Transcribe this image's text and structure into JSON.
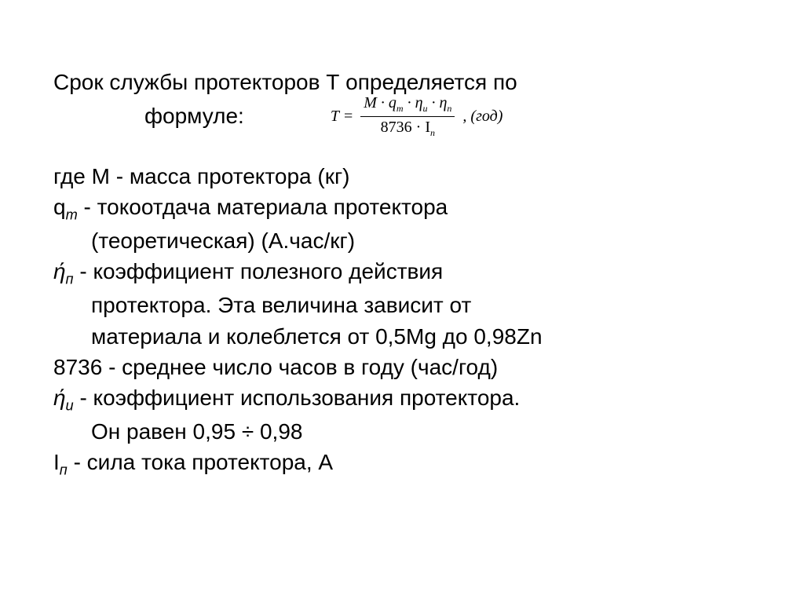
{
  "title": {
    "line1": "Срок службы протекторов Т определяется по",
    "line2_label": "формуле:"
  },
  "formula": {
    "lhs": "T",
    "equals": "=",
    "numerator": "M · q",
    "num_sub1": "m",
    "num_mid": " · η",
    "num_sub2": "u",
    "num_mid2": " · η",
    "num_sub3": "n",
    "denominator": "8736 · I",
    "den_sub": "n",
    "unit": ", (год)"
  },
  "defs": {
    "where": "где М - масса протектора (кг)",
    "qm_1": "q",
    "qm_sub": "m",
    "qm_2": " - токоотдача материала протектора",
    "qm_line2": "(теоретическая) (А.час/кг)",
    "eta_p_1": "ή",
    "eta_p_sub": "п",
    "eta_p_2": " - коэффициент полезного действия",
    "eta_p_line2": "протектора. Эта величина зависит от",
    "eta_p_line3": "материала и колеблется от 0,5Mg до 0,98Zn",
    "const_line": "8736 - среднее число часов в году (час/год)",
    "eta_u_1": "ή",
    "eta_u_sub": "u",
    "eta_u_2": " - коэффициент использования протектора.",
    "eta_u_line2": "Он равен 0,95 ÷ 0,98",
    "ip_1": "I",
    "ip_sub": "п",
    "ip_2": " - сила тока протектора, А"
  },
  "style": {
    "body_fontsize": 28,
    "formula_fontsize": 20,
    "text_color": "#000000",
    "background": "#ffffff",
    "font_family_body": "Arial",
    "font_family_formula": "Times New Roman"
  }
}
